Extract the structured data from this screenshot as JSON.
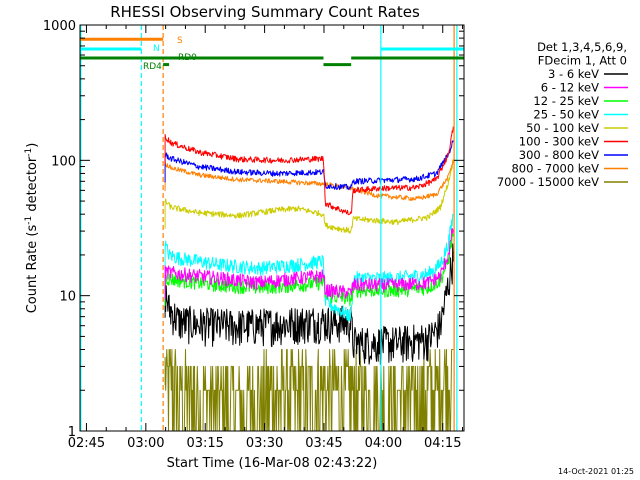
{
  "chart_data": {
    "type": "line",
    "title": "RHESSI Observing Summary Count Rates",
    "xlabel": "Start Time (16-Mar-08 02:43:22)",
    "ylabel_main": "Count Rate (s",
    "ylabel_sup1": "-1",
    "ylabel_mid": " detector",
    "ylabel_sup2": "-1",
    "ylabel_end": ")",
    "x_unit": "minutes after 02:43:22",
    "xlim": [
      0,
      97
    ],
    "ylim": [
      1,
      1000
    ],
    "y_log": true,
    "x_ticks": [
      {
        "t": 1.63,
        "label": "02:45"
      },
      {
        "t": 16.63,
        "label": "03:00"
      },
      {
        "t": 31.63,
        "label": "03:15"
      },
      {
        "t": 46.63,
        "label": "03:30"
      },
      {
        "t": 61.63,
        "label": "03:45"
      },
      {
        "t": 76.63,
        "label": "04:00"
      },
      {
        "t": 91.63,
        "label": "04:15"
      }
    ],
    "y_ticks": [
      {
        "v": 1,
        "label": "1"
      },
      {
        "v": 10,
        "label": "10"
      },
      {
        "v": 100,
        "label": "100"
      },
      {
        "v": 1000,
        "label": "1000"
      }
    ],
    "legend_header": [
      "Det 1,3,4,5,6,9,",
      "FDecim 1, Att 0"
    ],
    "legend_position": "right",
    "flag_labels": {
      "s": "S",
      "n": "N",
      "rd0": "RD0",
      "rd4": "RD4"
    },
    "vlines": [
      {
        "t": 0.2,
        "color": "#00ffff",
        "dashed": false
      },
      {
        "t": 15.5,
        "color": "#00ffff",
        "dashed": true
      },
      {
        "t": 21.0,
        "color": "#ff8000",
        "dashed": true
      },
      {
        "t": 76.0,
        "color": "#00ffff",
        "dashed": false
      },
      {
        "t": 94.5,
        "color": "#ff8000",
        "dashed": false
      },
      {
        "t": 95.2,
        "color": "#00ffff",
        "dashed": false
      }
    ],
    "flags": [
      {
        "name": "saa",
        "color": "#ff8000",
        "y_level": 785,
        "segments": [
          [
            0,
            21
          ]
        ]
      },
      {
        "name": "night",
        "color": "#00ffff",
        "y_level": 665,
        "segments": [
          [
            0,
            15.5
          ],
          [
            76.0,
            97
          ]
        ]
      },
      {
        "name": "decimation",
        "color": "#008000",
        "y_level": 570,
        "segments": [
          [
            0,
            61.5
          ],
          [
            68.5,
            97
          ]
        ]
      },
      {
        "name": "rd4",
        "color": "#008000",
        "y_level": 510,
        "segments": [
          [
            21.0,
            22.5
          ],
          [
            61.5,
            68.5
          ]
        ]
      }
    ],
    "series": [
      {
        "name": "3 - 6 keV",
        "color": "#000000",
        "noise": 0.32,
        "points": [
          [
            21.5,
            11
          ],
          [
            22.5,
            8
          ],
          [
            25,
            6.5
          ],
          [
            30,
            6.2
          ],
          [
            40,
            6.0
          ],
          [
            50,
            6.2
          ],
          [
            61.5,
            6.5
          ],
          [
            62,
            6.4
          ],
          [
            68.5,
            6.4
          ],
          [
            69,
            4.5
          ],
          [
            80,
            4.5
          ],
          [
            88,
            4.8
          ],
          [
            91,
            6
          ],
          [
            93,
            12
          ],
          [
            94.3,
            20
          ]
        ]
      },
      {
        "name": "6 - 12 keV",
        "color": "#ff00ff",
        "noise": 0.12,
        "points": [
          [
            21.5,
            15
          ],
          [
            25,
            14.5
          ],
          [
            35,
            13.5
          ],
          [
            45,
            12.5
          ],
          [
            55,
            13.5
          ],
          [
            61.5,
            14
          ],
          [
            62,
            11
          ],
          [
            68.5,
            10.5
          ],
          [
            69,
            12
          ],
          [
            80,
            12
          ],
          [
            88,
            12.5
          ],
          [
            91,
            14
          ],
          [
            93,
            20
          ],
          [
            94.3,
            32
          ]
        ]
      },
      {
        "name": "12 - 25 keV",
        "color": "#00ff00",
        "noise": 0.12,
        "points": [
          [
            21.5,
            13.5
          ],
          [
            25,
            13
          ],
          [
            35,
            12
          ],
          [
            45,
            11.5
          ],
          [
            55,
            12
          ],
          [
            61.5,
            12.5
          ],
          [
            62,
            10
          ],
          [
            68.5,
            9.5
          ],
          [
            69,
            11
          ],
          [
            80,
            11
          ],
          [
            88,
            11.5
          ],
          [
            91,
            13
          ],
          [
            93,
            18
          ],
          [
            94.3,
            30
          ]
        ]
      },
      {
        "name": "25 - 50 keV",
        "color": "#00ffff",
        "noise": 0.12,
        "points": [
          [
            21.5,
            24
          ],
          [
            22.5,
            20
          ],
          [
            25,
            19
          ],
          [
            35,
            17
          ],
          [
            45,
            16
          ],
          [
            55,
            17
          ],
          [
            61.5,
            18
          ],
          [
            62,
            9
          ],
          [
            68.5,
            7
          ],
          [
            69,
            13.5
          ],
          [
            80,
            13.5
          ],
          [
            88,
            14.5
          ],
          [
            91,
            17
          ],
          [
            93,
            24
          ],
          [
            94.3,
            40
          ]
        ]
      },
      {
        "name": "50 - 100 keV",
        "color": "#cccc00",
        "noise": 0.05,
        "points": [
          [
            21.5,
            50
          ],
          [
            23,
            45
          ],
          [
            30,
            41
          ],
          [
            40,
            39
          ],
          [
            50,
            43
          ],
          [
            55,
            44
          ],
          [
            61.5,
            40
          ],
          [
            62,
            33
          ],
          [
            68.5,
            30
          ],
          [
            69,
            37
          ],
          [
            80,
            35
          ],
          [
            88,
            38
          ],
          [
            91,
            45
          ],
          [
            93,
            68
          ],
          [
            94.3,
            100
          ]
        ]
      },
      {
        "name": "100 - 300 keV",
        "color": "#ff0000",
        "noise": 0.05,
        "points": [
          [
            21.5,
            150
          ],
          [
            23,
            135
          ],
          [
            30,
            115
          ],
          [
            40,
            102
          ],
          [
            50,
            100
          ],
          [
            61.5,
            103
          ],
          [
            62,
            48
          ],
          [
            68.5,
            40
          ],
          [
            69,
            60
          ],
          [
            75,
            62
          ],
          [
            85,
            63
          ],
          [
            90,
            72
          ],
          [
            93,
            110
          ],
          [
            94.3,
            175
          ]
        ]
      },
      {
        "name": "300 - 800 keV",
        "color": "#0000ff",
        "noise": 0.05,
        "points": [
          [
            21.5,
            110
          ],
          [
            23,
            103
          ],
          [
            30,
            90
          ],
          [
            40,
            82
          ],
          [
            50,
            80
          ],
          [
            61.5,
            82
          ],
          [
            62,
            65
          ],
          [
            68.5,
            63
          ],
          [
            69,
            70
          ],
          [
            75,
            71
          ],
          [
            85,
            73
          ],
          [
            90,
            80
          ],
          [
            93,
            110
          ],
          [
            94.3,
            140
          ]
        ]
      },
      {
        "name": "800 - 7000 keV",
        "color": "#ff8000",
        "noise": 0.04,
        "points": [
          [
            21.5,
            95
          ],
          [
            23,
            88
          ],
          [
            30,
            78
          ],
          [
            40,
            72
          ],
          [
            50,
            70
          ],
          [
            61.5,
            67
          ],
          [
            68.5,
            62
          ],
          [
            75,
            55
          ],
          [
            85,
            52
          ],
          [
            90,
            56
          ],
          [
            93,
            75
          ],
          [
            94.3,
            100
          ]
        ]
      },
      {
        "name": "7000 - 15000 keV",
        "color": "#808000",
        "noise": 0.0,
        "levels": [
          1,
          2,
          3,
          4
        ],
        "points": [
          [
            21.5,
            3.5
          ],
          [
            25,
            2.5
          ],
          [
            40,
            2.2
          ],
          [
            50,
            2.5
          ],
          [
            61.5,
            2.7
          ],
          [
            68.5,
            2.5
          ],
          [
            80,
            2.3
          ],
          [
            90,
            2.6
          ],
          [
            93,
            3.5
          ],
          [
            94.3,
            6
          ]
        ]
      }
    ]
  },
  "timestamp": "14-Oct-2021 01:25"
}
